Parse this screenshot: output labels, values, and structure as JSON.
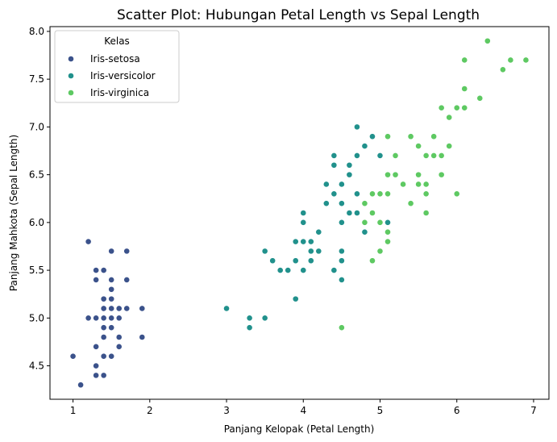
{
  "chart_data": {
    "type": "scatter",
    "title": "Scatter Plot: Hubungan Petal Length vs Sepal Length",
    "xlabel": "Panjang Kelopak (Petal Length)",
    "ylabel": "Panjang Mahkota (Sepal Length)",
    "xlim": [
      0.7,
      7.2
    ],
    "ylim": [
      4.15,
      8.05
    ],
    "xticks": [
      1,
      2,
      3,
      4,
      5,
      6,
      7
    ],
    "yticks": [
      4.5,
      5.0,
      5.5,
      6.0,
      6.5,
      7.0,
      7.5,
      8.0
    ],
    "xtick_labels": [
      "1",
      "2",
      "3",
      "4",
      "5",
      "6",
      "7"
    ],
    "ytick_labels": [
      "4.5",
      "5.0",
      "5.5",
      "6.0",
      "6.5",
      "7.0",
      "7.5",
      "8.0"
    ],
    "grid": false,
    "legend": {
      "title": "Kelas",
      "position": "top-left"
    },
    "series": [
      {
        "name": "Iris-setosa",
        "color": "#3b528b",
        "points": [
          [
            1.0,
            4.6
          ],
          [
            1.1,
            4.3
          ],
          [
            1.2,
            5.8
          ],
          [
            1.2,
            5.0
          ],
          [
            1.3,
            5.5
          ],
          [
            1.3,
            5.4
          ],
          [
            1.3,
            5.0
          ],
          [
            1.3,
            4.7
          ],
          [
            1.3,
            4.5
          ],
          [
            1.3,
            4.4
          ],
          [
            1.4,
            5.5
          ],
          [
            1.4,
            5.2
          ],
          [
            1.4,
            5.1
          ],
          [
            1.4,
            5.0
          ],
          [
            1.4,
            4.9
          ],
          [
            1.4,
            4.8
          ],
          [
            1.4,
            4.6
          ],
          [
            1.4,
            4.4
          ],
          [
            1.5,
            5.7
          ],
          [
            1.5,
            5.4
          ],
          [
            1.5,
            5.3
          ],
          [
            1.5,
            5.2
          ],
          [
            1.5,
            5.1
          ],
          [
            1.5,
            5.0
          ],
          [
            1.5,
            4.9
          ],
          [
            1.5,
            4.6
          ],
          [
            1.6,
            5.1
          ],
          [
            1.6,
            5.0
          ],
          [
            1.6,
            4.8
          ],
          [
            1.6,
            4.7
          ],
          [
            1.7,
            5.7
          ],
          [
            1.7,
            5.4
          ],
          [
            1.7,
            5.1
          ],
          [
            1.9,
            5.1
          ],
          [
            1.9,
            4.8
          ]
        ]
      },
      {
        "name": "Iris-versicolor",
        "color": "#21918c",
        "points": [
          [
            3.0,
            5.1
          ],
          [
            3.3,
            5.0
          ],
          [
            3.3,
            4.9
          ],
          [
            3.5,
            5.7
          ],
          [
            3.5,
            5.0
          ],
          [
            3.6,
            5.6
          ],
          [
            3.7,
            5.5
          ],
          [
            3.8,
            5.5
          ],
          [
            3.9,
            5.8
          ],
          [
            3.9,
            5.6
          ],
          [
            3.9,
            5.2
          ],
          [
            4.0,
            6.1
          ],
          [
            4.0,
            6.0
          ],
          [
            4.0,
            5.8
          ],
          [
            4.0,
            5.5
          ],
          [
            4.1,
            5.8
          ],
          [
            4.1,
            5.7
          ],
          [
            4.1,
            5.6
          ],
          [
            4.2,
            5.9
          ],
          [
            4.2,
            5.7
          ],
          [
            4.3,
            6.4
          ],
          [
            4.3,
            6.2
          ],
          [
            4.4,
            6.7
          ],
          [
            4.4,
            6.6
          ],
          [
            4.4,
            6.3
          ],
          [
            4.4,
            5.5
          ],
          [
            4.5,
            6.4
          ],
          [
            4.5,
            6.2
          ],
          [
            4.5,
            6.0
          ],
          [
            4.5,
            5.7
          ],
          [
            4.5,
            5.6
          ],
          [
            4.5,
            5.4
          ],
          [
            4.6,
            6.6
          ],
          [
            4.6,
            6.5
          ],
          [
            4.6,
            6.1
          ],
          [
            4.7,
            7.0
          ],
          [
            4.7,
            6.7
          ],
          [
            4.7,
            6.3
          ],
          [
            4.7,
            6.1
          ],
          [
            4.8,
            6.8
          ],
          [
            4.8,
            5.9
          ],
          [
            4.9,
            6.9
          ],
          [
            4.9,
            6.3
          ],
          [
            5.0,
            6.7
          ],
          [
            5.1,
            6.0
          ]
        ]
      },
      {
        "name": "Iris-virginica",
        "color": "#5ec962",
        "points": [
          [
            4.5,
            4.9
          ],
          [
            4.8,
            6.2
          ],
          [
            4.8,
            6.0
          ],
          [
            4.9,
            6.3
          ],
          [
            4.9,
            6.1
          ],
          [
            4.9,
            5.6
          ],
          [
            5.0,
            6.3
          ],
          [
            5.0,
            6.0
          ],
          [
            5.0,
            5.7
          ],
          [
            5.1,
            6.9
          ],
          [
            5.1,
            6.5
          ],
          [
            5.1,
            6.3
          ],
          [
            5.1,
            5.9
          ],
          [
            5.1,
            5.8
          ],
          [
            5.2,
            6.7
          ],
          [
            5.2,
            6.5
          ],
          [
            5.3,
            6.4
          ],
          [
            5.4,
            6.9
          ],
          [
            5.4,
            6.2
          ],
          [
            5.5,
            6.8
          ],
          [
            5.5,
            6.5
          ],
          [
            5.5,
            6.4
          ],
          [
            5.6,
            6.7
          ],
          [
            5.6,
            6.4
          ],
          [
            5.6,
            6.3
          ],
          [
            5.6,
            6.1
          ],
          [
            5.7,
            6.9
          ],
          [
            5.7,
            6.7
          ],
          [
            5.8,
            7.2
          ],
          [
            5.8,
            6.7
          ],
          [
            5.8,
            6.5
          ],
          [
            5.9,
            7.1
          ],
          [
            5.9,
            6.8
          ],
          [
            6.0,
            7.2
          ],
          [
            6.0,
            6.3
          ],
          [
            6.1,
            7.7
          ],
          [
            6.1,
            7.4
          ],
          [
            6.1,
            7.2
          ],
          [
            6.3,
            7.3
          ],
          [
            6.4,
            7.9
          ],
          [
            6.6,
            7.6
          ],
          [
            6.7,
            7.7
          ],
          [
            6.9,
            7.7
          ]
        ]
      }
    ]
  }
}
